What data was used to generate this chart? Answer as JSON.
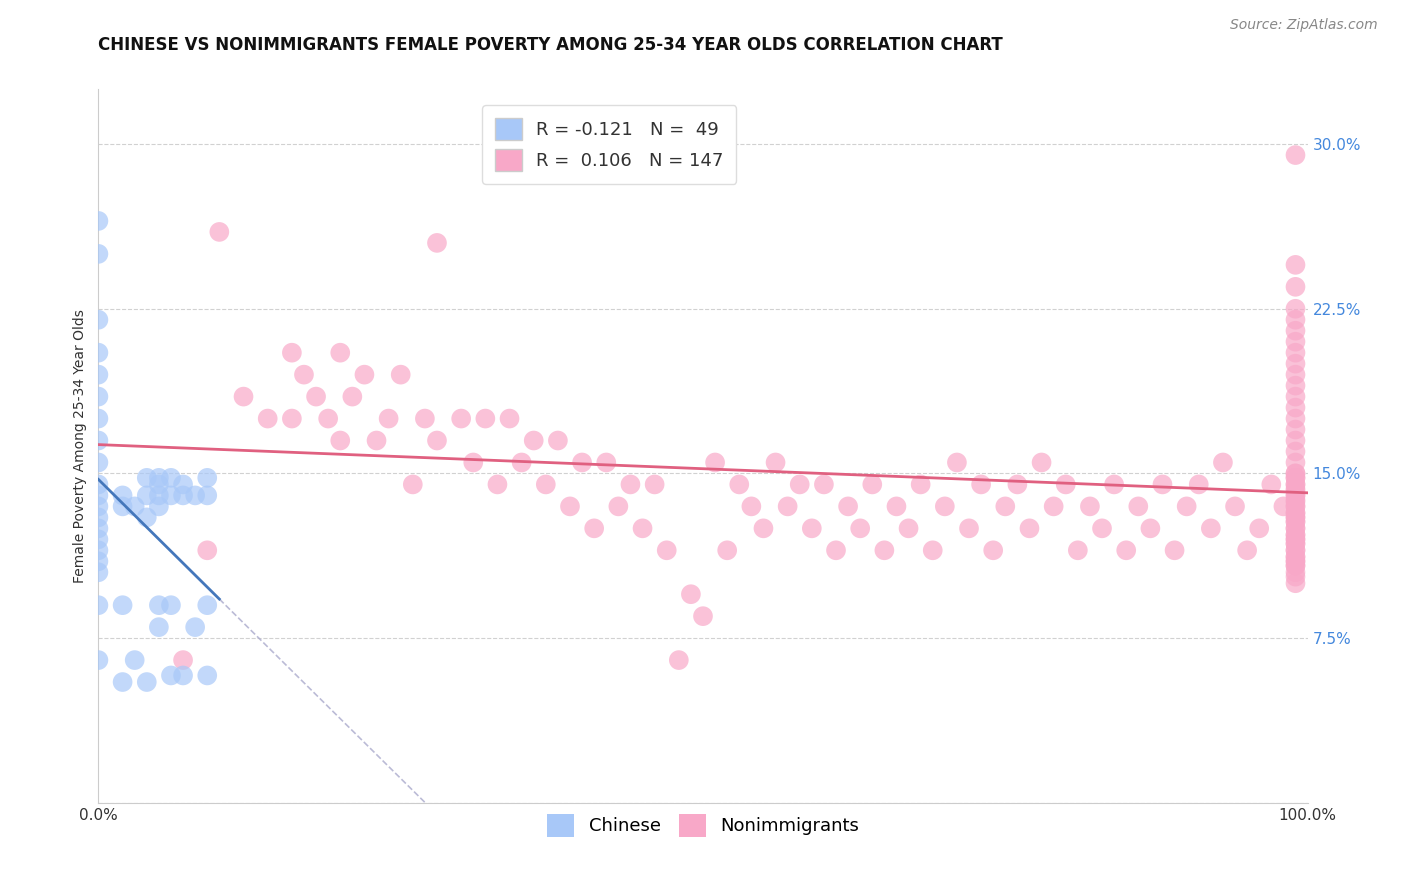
{
  "title": "CHINESE VS NONIMMIGRANTS FEMALE POVERTY AMONG 25-34 YEAR OLDS CORRELATION CHART",
  "source": "Source: ZipAtlas.com",
  "ylabel": "Female Poverty Among 25-34 Year Olds",
  "xlim": [
    0.0,
    1.0
  ],
  "ylim": [
    0.0,
    0.325
  ],
  "legend_R_chinese": "-0.121",
  "legend_N_chinese": "49",
  "legend_R_nonimm": "0.106",
  "legend_N_nonimm": "147",
  "chinese_color": "#a8c8f8",
  "nonimm_color": "#f8a8c8",
  "chinese_line_color": "#4477bb",
  "nonimm_line_color": "#e06080",
  "background_color": "#ffffff",
  "grid_color": "#cccccc",
  "title_fontsize": 12,
  "axis_label_fontsize": 10,
  "tick_fontsize": 11,
  "legend_fontsize": 13,
  "source_fontsize": 10,
  "chinese_x": [
    0.0,
    0.0,
    0.0,
    0.0,
    0.0,
    0.0,
    0.0,
    0.0,
    0.0,
    0.0,
    0.0,
    0.0,
    0.0,
    0.0,
    0.0,
    0.0,
    0.0,
    0.0,
    0.0,
    0.0,
    0.02,
    0.02,
    0.02,
    0.02,
    0.03,
    0.03,
    0.04,
    0.04,
    0.04,
    0.04,
    0.05,
    0.05,
    0.05,
    0.05,
    0.05,
    0.05,
    0.06,
    0.06,
    0.06,
    0.06,
    0.07,
    0.07,
    0.07,
    0.08,
    0.08,
    0.09,
    0.09,
    0.09,
    0.09
  ],
  "chinese_y": [
    0.265,
    0.25,
    0.22,
    0.205,
    0.195,
    0.185,
    0.175,
    0.165,
    0.155,
    0.145,
    0.14,
    0.135,
    0.13,
    0.125,
    0.12,
    0.115,
    0.11,
    0.105,
    0.09,
    0.065,
    0.14,
    0.135,
    0.09,
    0.055,
    0.135,
    0.065,
    0.148,
    0.14,
    0.13,
    0.055,
    0.148,
    0.145,
    0.14,
    0.135,
    0.09,
    0.08,
    0.148,
    0.14,
    0.09,
    0.058,
    0.145,
    0.14,
    0.058,
    0.14,
    0.08,
    0.148,
    0.14,
    0.09,
    0.058
  ],
  "nonimm_x": [
    0.07,
    0.09,
    0.1,
    0.12,
    0.14,
    0.16,
    0.16,
    0.17,
    0.18,
    0.19,
    0.2,
    0.2,
    0.21,
    0.22,
    0.23,
    0.24,
    0.25,
    0.26,
    0.27,
    0.28,
    0.28,
    0.3,
    0.31,
    0.32,
    0.33,
    0.34,
    0.35,
    0.36,
    0.37,
    0.38,
    0.39,
    0.4,
    0.41,
    0.42,
    0.43,
    0.44,
    0.45,
    0.46,
    0.47,
    0.48,
    0.49,
    0.5,
    0.51,
    0.52,
    0.53,
    0.54,
    0.55,
    0.56,
    0.57,
    0.58,
    0.59,
    0.6,
    0.61,
    0.62,
    0.63,
    0.64,
    0.65,
    0.66,
    0.67,
    0.68,
    0.69,
    0.7,
    0.71,
    0.72,
    0.73,
    0.74,
    0.75,
    0.76,
    0.77,
    0.78,
    0.79,
    0.8,
    0.81,
    0.82,
    0.83,
    0.84,
    0.85,
    0.86,
    0.87,
    0.88,
    0.89,
    0.9,
    0.91,
    0.92,
    0.93,
    0.94,
    0.95,
    0.96,
    0.97,
    0.98,
    0.99,
    0.99,
    0.99,
    0.99,
    0.99,
    0.99,
    0.99,
    0.99,
    0.99,
    0.99,
    0.99,
    0.99,
    0.99,
    0.99,
    0.99,
    0.99,
    0.99,
    0.99,
    0.99,
    0.99,
    0.99,
    0.99,
    0.99,
    0.99,
    0.99,
    0.99,
    0.99,
    0.99,
    0.99,
    0.99,
    0.99,
    0.99,
    0.99,
    0.99,
    0.99,
    0.99,
    0.99,
    0.99,
    0.99,
    0.99,
    0.99,
    0.99,
    0.99,
    0.99,
    0.99,
    0.99,
    0.99,
    0.99,
    0.99,
    0.99,
    0.99,
    0.99,
    0.99,
    0.99,
    0.99,
    0.99,
    0.99
  ],
  "nonimm_y": [
    0.065,
    0.115,
    0.26,
    0.185,
    0.175,
    0.205,
    0.175,
    0.195,
    0.185,
    0.175,
    0.205,
    0.165,
    0.185,
    0.195,
    0.165,
    0.175,
    0.195,
    0.145,
    0.175,
    0.255,
    0.165,
    0.175,
    0.155,
    0.175,
    0.145,
    0.175,
    0.155,
    0.165,
    0.145,
    0.165,
    0.135,
    0.155,
    0.125,
    0.155,
    0.135,
    0.145,
    0.125,
    0.145,
    0.115,
    0.065,
    0.095,
    0.085,
    0.155,
    0.115,
    0.145,
    0.135,
    0.125,
    0.155,
    0.135,
    0.145,
    0.125,
    0.145,
    0.115,
    0.135,
    0.125,
    0.145,
    0.115,
    0.135,
    0.125,
    0.145,
    0.115,
    0.135,
    0.155,
    0.125,
    0.145,
    0.115,
    0.135,
    0.145,
    0.125,
    0.155,
    0.135,
    0.145,
    0.115,
    0.135,
    0.125,
    0.145,
    0.115,
    0.135,
    0.125,
    0.145,
    0.115,
    0.135,
    0.145,
    0.125,
    0.155,
    0.135,
    0.115,
    0.125,
    0.145,
    0.135,
    0.295,
    0.245,
    0.235,
    0.225,
    0.22,
    0.215,
    0.21,
    0.205,
    0.2,
    0.195,
    0.19,
    0.185,
    0.18,
    0.175,
    0.17,
    0.165,
    0.16,
    0.155,
    0.15,
    0.15,
    0.148,
    0.145,
    0.143,
    0.14,
    0.138,
    0.135,
    0.132,
    0.13,
    0.128,
    0.125,
    0.122,
    0.12,
    0.118,
    0.115,
    0.112,
    0.11,
    0.108,
    0.148,
    0.145,
    0.142,
    0.14,
    0.137,
    0.135,
    0.132,
    0.13,
    0.128,
    0.125,
    0.122,
    0.12,
    0.118,
    0.115,
    0.112,
    0.11,
    0.108,
    0.105,
    0.103,
    0.1
  ]
}
